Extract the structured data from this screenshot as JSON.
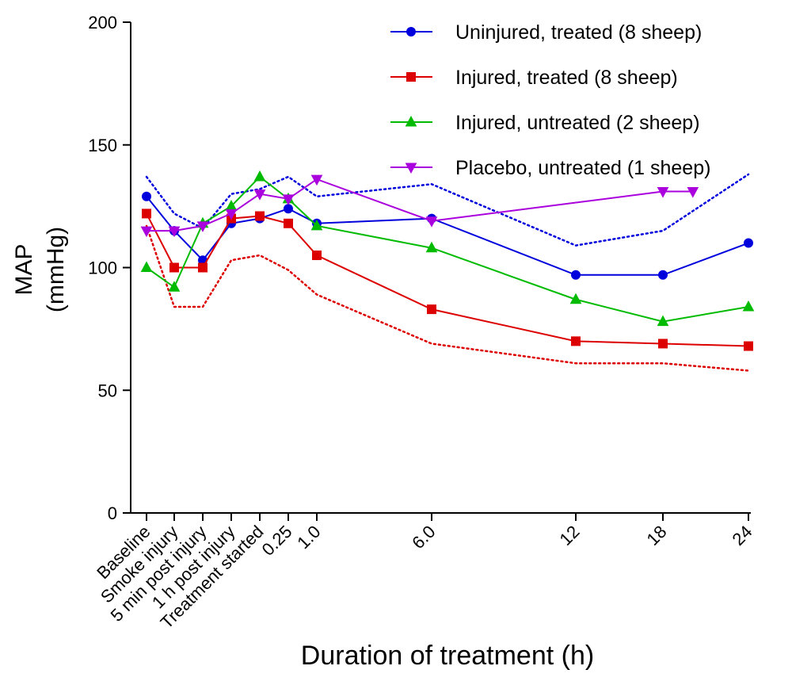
{
  "chart_data": {
    "type": "line",
    "title": "",
    "xlabel": "Duration of treatment (h)",
    "ylabel_lines": [
      "MAP",
      "(mmHg)"
    ],
    "ylim": [
      0,
      200
    ],
    "yticks": [
      0,
      50,
      100,
      150,
      200
    ],
    "x": [
      "Baseline",
      "Smoke injury",
      "5 min post injury",
      "1 h post injury",
      "Treatment started",
      "0.25",
      "1.0",
      "6.0",
      "12",
      "18",
      "24"
    ],
    "legend_position": "top-right",
    "series": [
      {
        "name": "Uninjured, treated (8 sheep)",
        "color": "#0000dd",
        "marker": "circle",
        "values": [
          129,
          115,
          103,
          118,
          120,
          124,
          118,
          120,
          97,
          97,
          110
        ]
      },
      {
        "name": "Injured, treated (8 sheep)",
        "color": "#dd0000",
        "marker": "square",
        "values": [
          122,
          100,
          100,
          120,
          121,
          118,
          105,
          83,
          70,
          69,
          68
        ]
      },
      {
        "name": "Injured, untreated (2 sheep)",
        "color": "#00bb00",
        "marker": "triangle-up",
        "values": [
          100,
          92,
          118,
          125,
          137,
          128,
          117,
          108,
          87,
          78,
          84
        ]
      },
      {
        "name": "Placebo, untreated (1 sheep)",
        "color": "#aa00dd",
        "marker": "triangle-down",
        "values": [
          115,
          115,
          117,
          122,
          130,
          128,
          136,
          119,
          null,
          131,
          null
        ],
        "extra_point": {
          "x_between": [
            "18",
            "24"
          ],
          "fraction": 0.35,
          "value": 131
        }
      }
    ],
    "bands": [
      {
        "color": "#0000dd",
        "style": "dotted",
        "values": [
          137,
          122,
          116,
          130,
          132,
          137,
          129,
          134,
          109,
          115,
          138
        ]
      },
      {
        "color": "#dd0000",
        "style": "dotted",
        "values": [
          117,
          84,
          84,
          103,
          105,
          99,
          89,
          69,
          61,
          61,
          58
        ]
      }
    ]
  }
}
